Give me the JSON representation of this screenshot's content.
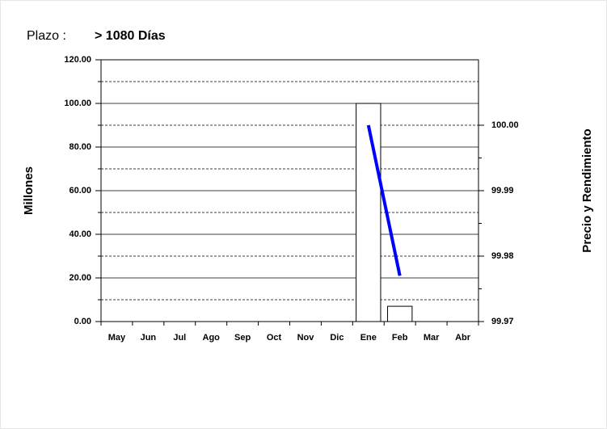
{
  "chart_data": {
    "type": "bar",
    "title": "Plazo :",
    "subtitle": "> 1080 Días",
    "y_label": "Millones",
    "y2_label": "Precio y Rendimiento",
    "categories": [
      "May",
      "Jun",
      "Jul",
      "Ago",
      "Sep",
      "Oct",
      "Nov",
      "Dic",
      "Ene",
      "Feb",
      "Mar",
      "Abr"
    ],
    "series": [
      {
        "type": "bar",
        "color": "#ffffff",
        "values": [
          null,
          null,
          null,
          null,
          null,
          null,
          null,
          null,
          100,
          7,
          null,
          null
        ]
      },
      {
        "type": "line",
        "axis": "y2",
        "color": "#0000ff",
        "values": [
          null,
          null,
          null,
          null,
          null,
          null,
          null,
          null,
          100.0,
          99.977,
          null,
          null
        ]
      }
    ],
    "ylim": [
      0,
      120
    ],
    "yticks": [
      {
        "value": 0,
        "label": "0.00"
      },
      {
        "value": 20,
        "label": "20.00"
      },
      {
        "value": 40,
        "label": "40.00"
      },
      {
        "value": 60,
        "label": "60.00"
      },
      {
        "value": 80,
        "label": "80.00"
      },
      {
        "value": 100,
        "label": "100.00"
      },
      {
        "value": 120,
        "label": "120.00"
      }
    ],
    "y2lim": [
      99.97,
      100.01
    ],
    "y2ticks": [
      {
        "value": 99.97,
        "label": "99.97"
      },
      {
        "value": 99.98,
        "label": "99.98"
      },
      {
        "value": 99.99,
        "label": "99.99"
      },
      {
        "value": 100.0,
        "label": "100.00"
      }
    ],
    "grid": true
  }
}
